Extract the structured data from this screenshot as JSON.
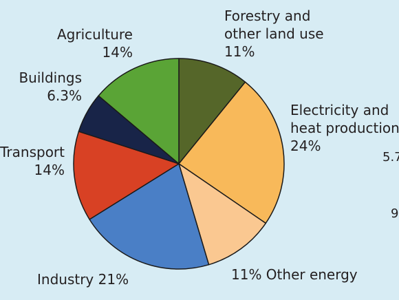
{
  "chart_data": {
    "type": "pie",
    "title": "",
    "slices": [
      {
        "name": "Forestry and other land use",
        "line1": "Forestry and",
        "line2": "other land use",
        "value_label": "11%",
        "value": 11,
        "color": "#556629"
      },
      {
        "name": "Electricity and heat production",
        "line1": "Electricity and",
        "line2": "heat production",
        "value_label": "24%",
        "value": 24,
        "color": "#f8b95a"
      },
      {
        "name": "Other energy",
        "line1": "11% Other energy",
        "value_label": "11%",
        "value": 11,
        "color": "#fac891"
      },
      {
        "name": "Industry",
        "line1": "Industry 21%",
        "value_label": "21%",
        "value": 21,
        "color": "#4a7fc6"
      },
      {
        "name": "Transport",
        "line1": "Transport",
        "value_label": "14%",
        "value": 14,
        "color": "#d84124"
      },
      {
        "name": "Buildings",
        "line1": "Buildings",
        "value_label": "6.3%",
        "value": 6.3,
        "color": "#182448"
      },
      {
        "name": "Agriculture",
        "line1": "Agriculture",
        "value_label": "14%",
        "value": 14,
        "color": "#5aa436"
      }
    ],
    "start_angle_deg": 0,
    "direction": "clockwise",
    "edge_fragments": [
      "5.7",
      "9"
    ]
  }
}
